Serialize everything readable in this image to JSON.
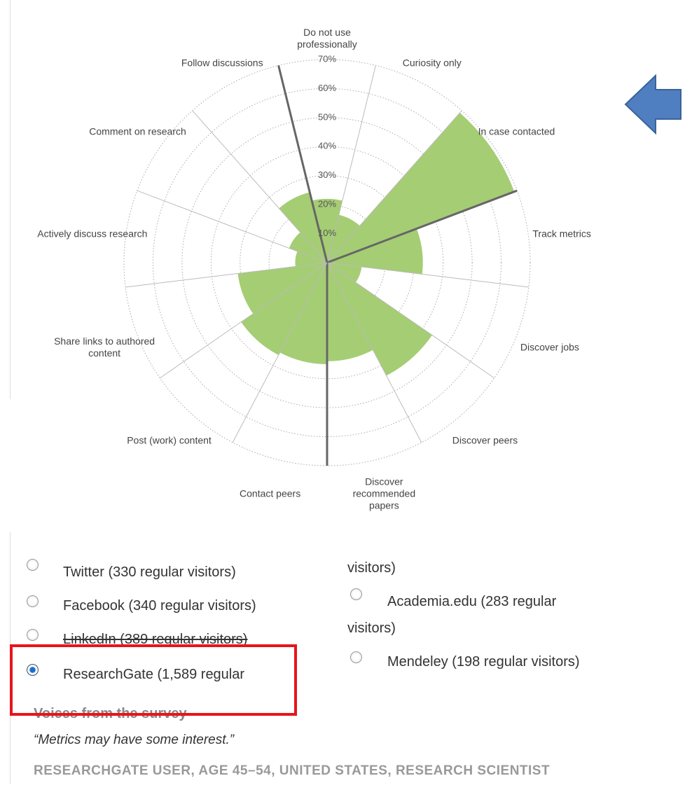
{
  "chart_data": {
    "type": "polar-area",
    "categories": [
      "Do not use professionally",
      "Curiosity only",
      "In case contacted",
      "Track metrics",
      "Discover jobs",
      "Discover peers",
      "Discover recommended papers",
      "Contact peers",
      "Post (work) content",
      "Share links to authored content",
      "Actively discuss research",
      "Comment on research",
      "Follow discussions"
    ],
    "values": [
      22,
      17,
      69,
      33,
      12,
      44,
      34,
      35,
      36,
      31,
      11,
      14,
      25
    ],
    "color": "#a5cd74",
    "rlim": [
      0,
      70
    ],
    "rticks": [
      {
        "value": 10,
        "label": "10%"
      },
      {
        "value": 20,
        "label": "20%"
      },
      {
        "value": 30,
        "label": "30%"
      },
      {
        "value": 40,
        "label": "40%"
      },
      {
        "value": 50,
        "label": "50%"
      },
      {
        "value": 60,
        "label": "60%"
      },
      {
        "value": 70,
        "label": "70%"
      }
    ],
    "grid": true
  },
  "options": {
    "left": [
      "Twitter (330 regular visitors)",
      "Facebook (340 regular visitors)",
      "LinkedIn (389 regular visitors)",
      "ResearchGate (1,589 regular"
    ],
    "right": [
      "visitors)",
      "Academia.edu (283 regular",
      "visitors)",
      "Mendeley (198 regular visitors)"
    ]
  },
  "voices": {
    "heading": "Voices from the survey",
    "quote": "“Metrics may have some interest.”",
    "attribution": "RESEARCHGATE USER, AGE 45–54, UNITED STATES, RESEARCH SCIENTIST"
  }
}
